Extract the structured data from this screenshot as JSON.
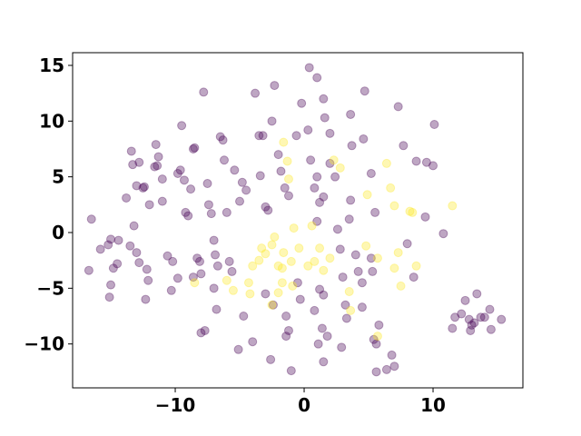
{
  "chart_data": {
    "type": "scatter",
    "xlim": [
      -17.96,
      16.97
    ],
    "ylim": [
      -13.94,
      16.14
    ],
    "xticks": [
      {
        "value": -10,
        "label": "−10"
      },
      0,
      10
    ],
    "yticks": [
      {
        "value": -10,
        "label": "−10"
      },
      {
        "value": -5,
        "label": "−5"
      },
      0,
      5,
      10,
      15
    ],
    "alpha": 0.35,
    "series": [
      {
        "color": "#440154",
        "x": [
          -16.5,
          -16.7,
          -15.8,
          -15,
          -15.2,
          -14.8,
          -14.5,
          -15,
          -15.1,
          -14.4,
          -13.8,
          -13.4,
          -13.3,
          -12.8,
          -13,
          -12.5,
          -12.4,
          -13.2,
          -13.5,
          -13,
          -12.8,
          -12.3,
          -12.2,
          -12.1,
          -12,
          -11.6,
          -11.4,
          -11.3,
          -11.5,
          -11,
          -11,
          -10.6,
          -10.2,
          -10.3,
          -9.8,
          -9.8,
          -9.6,
          -9.5,
          -9.2,
          -9.3,
          -8.8,
          -9,
          -8.6,
          -8.3,
          -8.1,
          -8,
          -8.6,
          -8.5,
          -7.8,
          -7.5,
          -7.4,
          -7.2,
          -7,
          -6.9,
          -6.7,
          -7,
          -6.8,
          -7.7,
          -8,
          -6.5,
          -6.3,
          -6.2,
          -6,
          -5.8,
          -5.6,
          -5.4,
          -5,
          -4.8,
          -4.5,
          -5.1,
          -4.7,
          -4,
          -3.8,
          -3.5,
          -3.2,
          -3.4,
          -3,
          -2.8,
          -2.5,
          -2.3,
          -2,
          -1.8,
          -1.5,
          -1.2,
          -3,
          -2.4,
          -2.6,
          -1.4,
          -1.2,
          -1.4,
          -1,
          -0.5,
          -0.3,
          -0.2,
          -0.6,
          0.4,
          0.3,
          0.5,
          0.8,
          1,
          1.2,
          1.5,
          1,
          1.2,
          1.5,
          0.8,
          1.4,
          1.1,
          1.5,
          1.8,
          1,
          1.5,
          1.6,
          2,
          2,
          2.4,
          2.6,
          2.8,
          3,
          3.2,
          2.9,
          3.3,
          3.6,
          3.6,
          3.7,
          3.5,
          4,
          4.2,
          4.5,
          4.5,
          4.6,
          4.7,
          5.2,
          5.5,
          5.2,
          5.3,
          5.4,
          5.6,
          5.8,
          5.6,
          6.4,
          7,
          6.8,
          7.3,
          7.7,
          8,
          8.5,
          8.7,
          9.5,
          10,
          10.1,
          10.8,
          9.4,
          11.5,
          11.7,
          12.2,
          12.8,
          12.9,
          13,
          13.4,
          13.7,
          14,
          14.4,
          14.5,
          15.3,
          12.5,
          13.2
        ],
        "y": [
          1.2,
          -3.4,
          -1.5,
          -0.6,
          -1.1,
          -3.2,
          -2.8,
          -4.7,
          -5.8,
          -0.7,
          3.1,
          7.3,
          6.1,
          6.3,
          4.2,
          4,
          4.1,
          0.6,
          -1.2,
          -1.8,
          -2.7,
          -6,
          -3.3,
          -4.3,
          2.5,
          5.9,
          6,
          6.8,
          7.9,
          4.8,
          2.8,
          -2.1,
          -2.6,
          -5.2,
          -4.1,
          5.3,
          5.6,
          9.6,
          1.8,
          4.7,
          3.9,
          1.5,
          -4,
          -2.3,
          -2.6,
          -3.7,
          7.5,
          7.6,
          12.6,
          4.4,
          2.5,
          1.7,
          -0.7,
          -2,
          -3,
          -5,
          -6.9,
          -8.8,
          -9,
          8.6,
          8.3,
          6.5,
          1.8,
          -2.6,
          -3.5,
          5.6,
          2.8,
          4.5,
          3.8,
          -10.5,
          -7.5,
          -9.8,
          12.5,
          8.7,
          8.7,
          5.1,
          2.3,
          2,
          10,
          13.2,
          7,
          5.5,
          4,
          3.3,
          -5.5,
          -6.5,
          -11.4,
          -7.5,
          -8.8,
          -9.3,
          -12.4,
          -4.5,
          -6,
          11.6,
          8.7,
          14.8,
          9.2,
          6.5,
          4,
          5,
          2.7,
          3.2,
          1,
          -5.1,
          -5.6,
          -7,
          -8.6,
          -10,
          -11.6,
          -9.3,
          13.9,
          12,
          10.3,
          8.9,
          6.2,
          5,
          0.3,
          -1.5,
          -4,
          -6.5,
          -10.3,
          -7.7,
          2.9,
          10.6,
          7.8,
          1.2,
          -2,
          -3.5,
          -4.5,
          -6.7,
          8.4,
          12.7,
          5.3,
          1.8,
          -2.3,
          -3.5,
          -9.6,
          -10,
          -8.3,
          -12.5,
          -12.3,
          -12,
          -11,
          11.3,
          7.8,
          -1,
          -4,
          6.4,
          6.3,
          6,
          9.7,
          -0.1,
          1.4,
          -8.6,
          -7.6,
          -7.3,
          -7.8,
          -8.8,
          -8.3,
          -5.5,
          -7.6,
          -7.6,
          -6.9,
          -8.7,
          -7.8,
          -6.1,
          -8.1
        ]
      },
      {
        "color": "#fde725",
        "x": [
          -1.6,
          -1.3,
          -1.2,
          0.6,
          -0.8,
          -2.3,
          -2.5,
          -3,
          -3.5,
          -4,
          -4.3,
          -4.2,
          -5.5,
          -6,
          -8.5,
          -1.6,
          -1,
          -1.7,
          -0.9,
          -2.5,
          -1.7,
          -2,
          0.3,
          1.2,
          0.8,
          2,
          1.5,
          2.8,
          2.3,
          3.5,
          3.6,
          4.8,
          4.9,
          5.7,
          5.7,
          6.4,
          6.7,
          7,
          7.3,
          7.5,
          8.2,
          8.4,
          8.7,
          11.5,
          7,
          -0.4,
          -3.3,
          -2
        ],
        "y": [
          8.1,
          6.4,
          4.8,
          0.6,
          0.4,
          -0.4,
          -1.1,
          -1.9,
          -2.5,
          -3,
          -4.5,
          -5.5,
          -5.2,
          -4.3,
          -4.5,
          -1.8,
          -2.6,
          -3.2,
          -4.8,
          -6.5,
          -4.5,
          -5.4,
          -3,
          -1.4,
          -2.6,
          -2.3,
          -3.4,
          5.8,
          6.5,
          -5.3,
          -7,
          -1.2,
          3.4,
          -2.3,
          -9.3,
          6.2,
          4,
          2.4,
          -1.8,
          -4.8,
          1.9,
          1.8,
          -3,
          2.4,
          -3.2,
          -1.4,
          -1.4,
          -3
        ]
      }
    ]
  }
}
